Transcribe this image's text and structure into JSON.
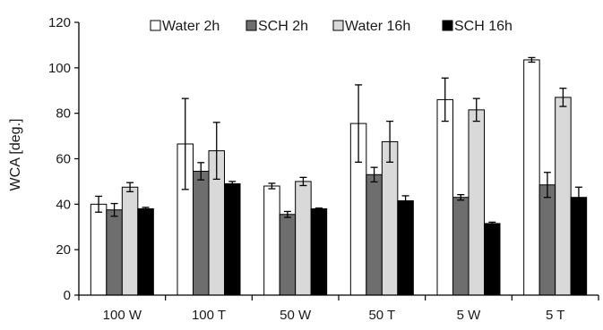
{
  "chart_data": {
    "type": "bar",
    "title": "",
    "xlabel": "",
    "ylabel": "WCA [deg.]",
    "ylim": [
      0,
      120
    ],
    "yticks": [
      0,
      20,
      40,
      60,
      80,
      100,
      120
    ],
    "grid": false,
    "legend_position": "top",
    "categories": [
      "100 W",
      "100 T",
      "50 W",
      "50 T",
      "5 W",
      "5 T"
    ],
    "series": [
      {
        "name": "Water 2h",
        "color": "#ffffff",
        "values": [
          40.0,
          66.5,
          48.0,
          75.5,
          86.0,
          103.5
        ],
        "errors": [
          3.5,
          20.0,
          1.2,
          17.0,
          9.5,
          1.0
        ]
      },
      {
        "name": "SCH 2h",
        "color": "#6e6e6e",
        "values": [
          37.5,
          54.5,
          35.5,
          53.0,
          43.0,
          48.5
        ],
        "errors": [
          2.8,
          3.8,
          1.3,
          3.2,
          1.2,
          5.5
        ]
      },
      {
        "name": "Water 16h",
        "color": "#d9d9d9",
        "values": [
          47.5,
          63.5,
          50.0,
          67.5,
          81.5,
          87.0
        ],
        "errors": [
          2.0,
          12.5,
          1.8,
          9.0,
          5.0,
          4.0
        ]
      },
      {
        "name": "SCH 16h",
        "color": "#000000",
        "values": [
          38.0,
          49.0,
          38.0,
          41.5,
          31.5,
          43.0
        ],
        "errors": [
          0.6,
          1.0,
          0.3,
          2.2,
          0.6,
          4.5
        ]
      }
    ]
  }
}
